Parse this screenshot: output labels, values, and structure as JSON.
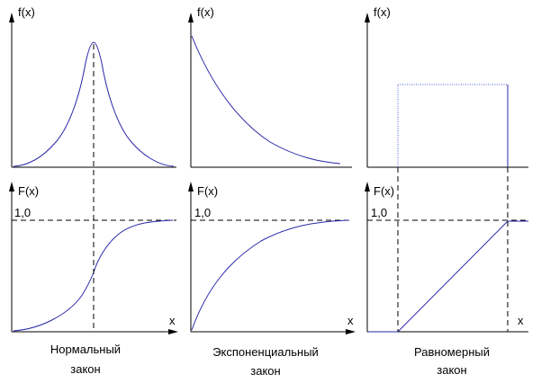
{
  "diagram": {
    "columns": [
      {
        "id": "normal",
        "pdf_label": "f(x)",
        "cdf_label": "F(x)",
        "level_label": "1,0",
        "x_label": "x",
        "caption": [
          "Нормальный",
          "закон"
        ]
      },
      {
        "id": "exponential",
        "pdf_label": "f(x)",
        "cdf_label": "F(x)",
        "level_label": "1,0",
        "x_label": "x",
        "caption": [
          "Экспоненциальный",
          "закон"
        ]
      },
      {
        "id": "uniform",
        "pdf_label": "f(x)",
        "cdf_label": "F(x)",
        "level_label": "1,0",
        "x_label": "x",
        "caption": [
          "Равномерный",
          "закон"
        ]
      }
    ],
    "colors": {
      "axes": "#000000",
      "curves": "#2929a8",
      "dotted_rect": "#4a5ad8"
    }
  }
}
